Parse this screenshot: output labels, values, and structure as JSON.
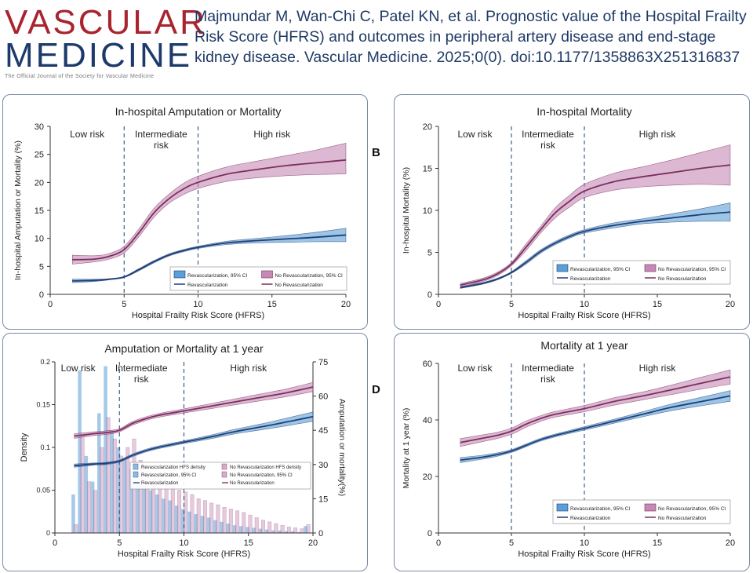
{
  "journal": {
    "name_line1": "VASCULAR",
    "name_line2": "MEDICINE",
    "tagline": "The Official Journal of the Society for Vascular Medicine"
  },
  "citation": "Majmundar M, Wan-Chi C, Patel KN, et al. Prognostic value of the Hospital Frailty Risk Score (HFRS) and outcomes in peripheral artery disease and end-stage kidney disease. Vascular Medicine. 2025;0(0). doi:10.1177/1358863X251316837",
  "panel_letters": {
    "b": "B",
    "d": "D"
  },
  "colors": {
    "revasc_line": "#1f3f77",
    "revasc_band": "#5a9fd6",
    "norevasc_line": "#7a2f5e",
    "norevasc_band": "#c689b5",
    "dashed": "#2f4f7f",
    "axis": "#333333"
  },
  "chart_data": [
    {
      "id": "a",
      "type": "line",
      "title": "In-hospital Amputation or Mortality",
      "xlabel": "Hospital Frailty Risk Score (HFRS)",
      "ylabel": "In-hospital Amputation or Mortality (%)",
      "xlim": [
        0,
        20
      ],
      "ylim": [
        0,
        30
      ],
      "xticks": [
        0,
        5,
        10,
        15,
        20
      ],
      "yticks": [
        0,
        5,
        10,
        15,
        20,
        25,
        30
      ],
      "cutoffs": [
        5,
        10
      ],
      "regions": [
        {
          "label": "Low risk",
          "x": 2.5
        },
        {
          "label": "Intermediate risk",
          "x": 7.5
        },
        {
          "label": "High risk",
          "x": 15
        }
      ],
      "legend": {
        "band1": "Revascularization, 95% CI",
        "band2": "No Revascularization, 95% CI",
        "line1": "Revascularization",
        "line2": "No Revascularization"
      },
      "series": [
        {
          "name": "No Revascularization",
          "x": [
            1.5,
            3,
            4,
            5,
            6,
            7,
            8,
            9,
            10,
            12,
            14,
            16,
            18,
            20
          ],
          "y": [
            6.2,
            6.3,
            6.8,
            8.0,
            11.0,
            14.5,
            17.0,
            18.8,
            20.0,
            21.5,
            22.3,
            23.0,
            23.5,
            24.0
          ],
          "lo": [
            5.4,
            5.8,
            6.3,
            7.4,
            10.3,
            13.7,
            16.2,
            17.8,
            18.9,
            20.2,
            20.8,
            21.2,
            21.4,
            21.5
          ],
          "hi": [
            7.0,
            6.9,
            7.3,
            8.6,
            11.7,
            15.3,
            17.8,
            19.8,
            21.1,
            22.8,
            23.8,
            24.8,
            25.8,
            27.0
          ]
        },
        {
          "name": "Revascularization",
          "x": [
            1.5,
            3,
            4,
            5,
            6,
            7,
            8,
            9,
            10,
            12,
            14,
            16,
            18,
            20
          ],
          "y": [
            2.4,
            2.5,
            2.7,
            3.1,
            4.4,
            5.8,
            7.0,
            7.8,
            8.4,
            9.2,
            9.6,
            9.9,
            10.2,
            10.6
          ],
          "lo": [
            2.1,
            2.3,
            2.6,
            3.0,
            4.2,
            5.6,
            6.8,
            7.6,
            8.2,
            8.9,
            9.2,
            9.3,
            9.4,
            9.4
          ],
          "hi": [
            2.7,
            2.7,
            2.8,
            3.2,
            4.6,
            6.0,
            7.2,
            8.0,
            8.6,
            9.5,
            10.0,
            10.5,
            11.1,
            11.8
          ]
        }
      ]
    },
    {
      "id": "b",
      "type": "line",
      "title": "In-hospital Mortality",
      "xlabel": "Hospital Frailty Risk Score (HFRS)",
      "ylabel": "In-hospital Mortality (%)",
      "xlim": [
        0,
        20
      ],
      "ylim": [
        0,
        20
      ],
      "xticks": [
        0,
        5,
        10,
        15,
        20
      ],
      "yticks": [
        0,
        5,
        10,
        15,
        20
      ],
      "cutoffs": [
        5,
        10
      ],
      "regions": [
        {
          "label": "Low risk",
          "x": 2.5
        },
        {
          "label": "Intermediate risk",
          "x": 7.5
        },
        {
          "label": "High risk",
          "x": 15
        }
      ],
      "legend": {
        "band1": "Revascularization, 95% CI",
        "band2": "No Revascularization, 95% CI",
        "line1": "Revascularization",
        "line2": "No Revascularization"
      },
      "series": [
        {
          "name": "No Revascularization",
          "x": [
            1.5,
            3,
            4,
            5,
            6,
            7,
            8,
            9,
            10,
            12,
            14,
            16,
            18,
            20
          ],
          "y": [
            1.1,
            1.7,
            2.4,
            3.6,
            5.6,
            7.7,
            9.7,
            11.1,
            12.3,
            13.4,
            14.0,
            14.5,
            15.0,
            15.4
          ],
          "lo": [
            0.9,
            1.5,
            2.2,
            3.4,
            5.2,
            7.3,
            9.1,
            10.4,
            11.5,
            12.4,
            12.8,
            13.0,
            13.1,
            13.0
          ],
          "hi": [
            1.3,
            1.9,
            2.6,
            3.8,
            6.0,
            8.1,
            10.3,
            11.8,
            13.1,
            14.4,
            15.2,
            16.0,
            16.9,
            17.8
          ]
        },
        {
          "name": "Revascularization",
          "x": [
            1.5,
            3,
            4,
            5,
            6,
            7,
            8,
            9,
            10,
            12,
            14,
            16,
            18,
            20
          ],
          "y": [
            0.8,
            1.3,
            1.8,
            2.6,
            3.8,
            5.1,
            6.1,
            6.9,
            7.5,
            8.2,
            8.7,
            9.1,
            9.5,
            9.8
          ],
          "lo": [
            0.7,
            1.2,
            1.7,
            2.5,
            3.6,
            4.9,
            5.9,
            6.7,
            7.3,
            7.9,
            8.4,
            8.6,
            8.7,
            8.7
          ],
          "hi": [
            0.9,
            1.4,
            1.9,
            2.7,
            4.0,
            5.3,
            6.3,
            7.1,
            7.7,
            8.5,
            9.0,
            9.6,
            10.2,
            10.9
          ]
        }
      ]
    },
    {
      "id": "c",
      "type": "bar+line",
      "title": "Amputation or Mortality at 1 year",
      "xlabel": "Hospital Frailty Risk Score (HFRS)",
      "ylabel": "Density",
      "y2label": "Amputation or mortality(%)",
      "xlim": [
        0,
        20
      ],
      "ylim": [
        0,
        0.2
      ],
      "y2lim": [
        0,
        75
      ],
      "xticks": [
        0,
        5,
        10,
        15,
        20
      ],
      "yticks": [
        0,
        0.05,
        0.1,
        0.15,
        0.2
      ],
      "ytick_labels": [
        "0",
        "0.05",
        "0.1",
        "0.15",
        "0.2"
      ],
      "y2ticks": [
        0,
        15,
        30,
        45,
        60,
        75
      ],
      "cutoffs": [
        5,
        10
      ],
      "regions": [
        {
          "label": "Low risk",
          "x": 1.8
        },
        {
          "label": "Intermediate risk",
          "x": 6.7
        },
        {
          "label": "High risk",
          "x": 15
        }
      ],
      "legend": {
        "item1": "Revascularization HFS density",
        "item2": "No Revascularization HFS density",
        "item3": "Revascularization, 95% CI",
        "item4": "No Revascularization, 95% CI",
        "item5": "Revascularization",
        "item6": "No Revascularization"
      },
      "hist_bins": [
        1.5,
        2.0,
        2.5,
        3.0,
        3.5,
        4.0,
        4.5,
        5.0,
        5.5,
        6.0,
        6.5,
        7.0,
        7.5,
        8.0,
        8.5,
        9.0,
        9.5,
        10.0,
        10.5,
        11.0,
        11.5,
        12.0,
        12.5,
        13.0,
        13.5,
        14.0,
        14.5,
        15.0,
        15.5,
        16.0,
        16.5,
        17.0,
        17.5,
        18.0,
        18.5,
        19.0,
        19.5
      ],
      "revasc_density": [
        0.045,
        0.19,
        0.09,
        0.06,
        0.14,
        0.195,
        0.12,
        0.1,
        0.085,
        0.075,
        0.06,
        0.055,
        0.05,
        0.045,
        0.04,
        0.038,
        0.032,
        0.028,
        0.025,
        0.022,
        0.02,
        0.018,
        0.015,
        0.013,
        0.011,
        0.009,
        0.008,
        0.007,
        0.006,
        0.005,
        0.004,
        0.003,
        0.003,
        0.002,
        0.002,
        0.001,
        0.008
      ],
      "norevasc_density": [
        0.01,
        0.115,
        0.06,
        0.05,
        0.1,
        0.135,
        0.11,
        0.09,
        0.1,
        0.11,
        0.085,
        0.075,
        0.07,
        0.065,
        0.058,
        0.055,
        0.05,
        0.048,
        0.045,
        0.04,
        0.038,
        0.035,
        0.033,
        0.03,
        0.028,
        0.026,
        0.024,
        0.021,
        0.018,
        0.015,
        0.013,
        0.011,
        0.009,
        0.007,
        0.006,
        0.005,
        0.01
      ],
      "series": [
        {
          "name": "No Revascularization",
          "x": [
            1.5,
            3,
            4,
            5,
            6,
            7,
            8,
            10,
            12,
            14,
            16,
            18,
            20
          ],
          "y": [
            42.5,
            43.5,
            44,
            45,
            48,
            50,
            51.5,
            53.5,
            55.5,
            57.5,
            59.5,
            61.5,
            64
          ],
          "lo": [
            41.5,
            42.7,
            43.2,
            44.3,
            47.2,
            49.2,
            50.7,
            52.6,
            54.4,
            56.2,
            58.0,
            59.8,
            62.0
          ],
          "hi": [
            43.5,
            44.3,
            44.8,
            45.7,
            48.8,
            50.8,
            52.3,
            54.4,
            56.6,
            58.8,
            61.0,
            63.2,
            66.0
          ]
        },
        {
          "name": "Revascularization",
          "x": [
            1.5,
            3,
            4,
            5,
            6,
            7,
            8,
            10,
            12,
            14,
            16,
            18,
            20
          ],
          "y": [
            29.5,
            30.2,
            30.5,
            31.5,
            34,
            36,
            37.5,
            39.8,
            42,
            44.5,
            46.5,
            48.7,
            51
          ],
          "lo": [
            28.8,
            29.7,
            30.0,
            31.0,
            33.4,
            35.4,
            36.9,
            39.2,
            41.2,
            43.5,
            45.2,
            47.0,
            49.0
          ],
          "hi": [
            30.2,
            30.7,
            31.0,
            32.0,
            34.6,
            36.6,
            38.1,
            40.4,
            42.8,
            45.5,
            47.8,
            50.4,
            53.0
          ]
        }
      ]
    },
    {
      "id": "d",
      "type": "line",
      "title": "Mortality at 1 year",
      "xlabel": "Hospital Frailty Risk Score (HFRS)",
      "ylabel": "Mortality at 1 year (%)",
      "xlim": [
        0,
        20
      ],
      "ylim": [
        0,
        60
      ],
      "xticks": [
        0,
        5,
        10,
        15,
        20
      ],
      "yticks": [
        0,
        20,
        40,
        60
      ],
      "cutoffs": [
        5,
        10
      ],
      "regions": [
        {
          "label": "Low risk",
          "x": 2.5
        },
        {
          "label": "Intermediate risk",
          "x": 7.5
        },
        {
          "label": "High risk",
          "x": 15
        }
      ],
      "legend": {
        "band1": "Revascularization, 95% CI",
        "band2": "No Revascularization, 95% CI",
        "line1": "Revascularization",
        "line2": "No Revascularization"
      },
      "series": [
        {
          "name": "No Revascularization",
          "x": [
            1.5,
            3,
            4,
            5,
            6,
            7,
            8,
            10,
            12,
            14,
            16,
            18,
            20
          ],
          "y": [
            32,
            33.5,
            34.5,
            36,
            38.5,
            40.5,
            42,
            44,
            46.5,
            48.5,
            50.7,
            53,
            55.2
          ],
          "lo": [
            30.6,
            32.3,
            33.4,
            34.9,
            37.4,
            39.5,
            41.0,
            42.9,
            45.2,
            47.1,
            49.0,
            50.9,
            52.7
          ],
          "hi": [
            33.4,
            34.7,
            35.6,
            37.1,
            39.6,
            41.5,
            43.0,
            45.1,
            47.8,
            49.9,
            52.4,
            55.1,
            57.7
          ]
        },
        {
          "name": "Revascularization",
          "x": [
            1.5,
            3,
            4,
            5,
            6,
            7,
            8,
            10,
            12,
            14,
            16,
            18,
            20
          ],
          "y": [
            25.8,
            26.8,
            27.7,
            29,
            31,
            33,
            34.5,
            37,
            39.5,
            42,
            44.5,
            46.5,
            48.5
          ],
          "lo": [
            24.9,
            26.1,
            27.1,
            28.5,
            30.5,
            32.5,
            34.0,
            36.4,
            38.8,
            41.1,
            43.3,
            45.0,
            46.6
          ],
          "hi": [
            26.7,
            27.5,
            28.3,
            29.5,
            31.5,
            33.5,
            35.0,
            37.6,
            40.2,
            42.9,
            45.7,
            48.0,
            50.4
          ]
        }
      ]
    }
  ]
}
